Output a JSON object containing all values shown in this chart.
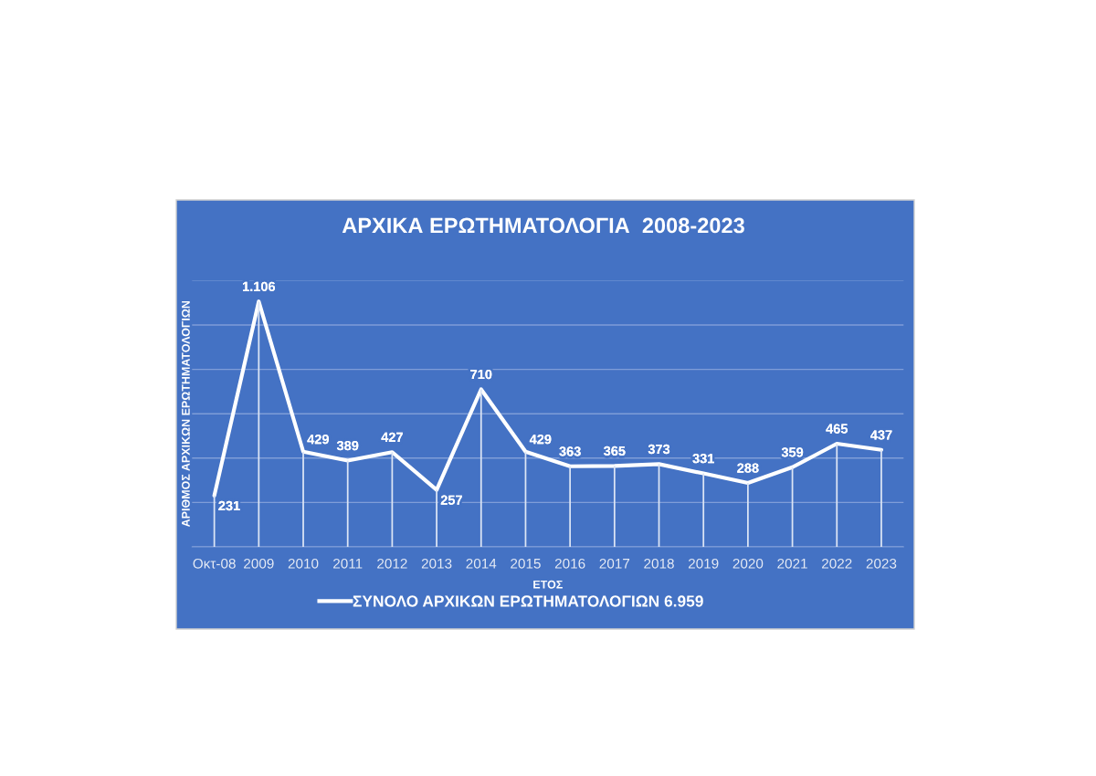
{
  "chart_data": {
    "type": "line",
    "title": "ΑΡΧΙΚΑ ΕΡΩΤΗΜΑΤΟΛΟΓΙΑ  2008-2023",
    "xlabel": "ΕΤΟΣ",
    "ylabel": "ΑΡΙΘΜΟΣ ΑΡΧΙΚΩΝ ΕΡΩΤΗΜΑΤΟΛΟΓΙΩΝ",
    "categories": [
      "Οκτ-08",
      "2009",
      "2010",
      "2011",
      "2012",
      "2013",
      "2014",
      "2015",
      "2016",
      "2017",
      "2018",
      "2019",
      "2020",
      "2021",
      "2022",
      "2023"
    ],
    "series": [
      {
        "type": "bar",
        "color": "#dce5f5",
        "values": [
          231,
          1106,
          429,
          389,
          427,
          257,
          710,
          429,
          363,
          365,
          373,
          331,
          288,
          359,
          465,
          437
        ]
      },
      {
        "name": "ΣΥΝΟΛΟ ΑΡΧΙΚΩΝ ΕΡΩΤΗΜΑΤΟΛΟΓΙΩΝ 6.959",
        "color": "#ffffff",
        "values": [
          231,
          1106,
          429,
          389,
          427,
          257,
          710,
          429,
          363,
          365,
          373,
          331,
          288,
          359,
          465,
          437
        ],
        "value_labels": [
          "231",
          "1.106",
          "429",
          "389",
          "427",
          "257",
          "710",
          "429",
          "363",
          "365",
          "373",
          "331",
          "288",
          "359",
          "465",
          "437"
        ]
      }
    ],
    "ylim": [
      0,
      1200
    ],
    "yticks": [
      {
        "value": 0,
        "label": null
      },
      {
        "value": 200,
        "label": null
      },
      {
        "value": 400,
        "label": null
      },
      {
        "value": 600,
        "label": null
      },
      {
        "value": 800,
        "label": null
      },
      {
        "value": 1000,
        "label": null
      },
      {
        "value": 1200,
        "label": null
      }
    ],
    "tick_labels": "x",
    "grid": "y",
    "legend": "bottom",
    "line_style": "solid"
  }
}
